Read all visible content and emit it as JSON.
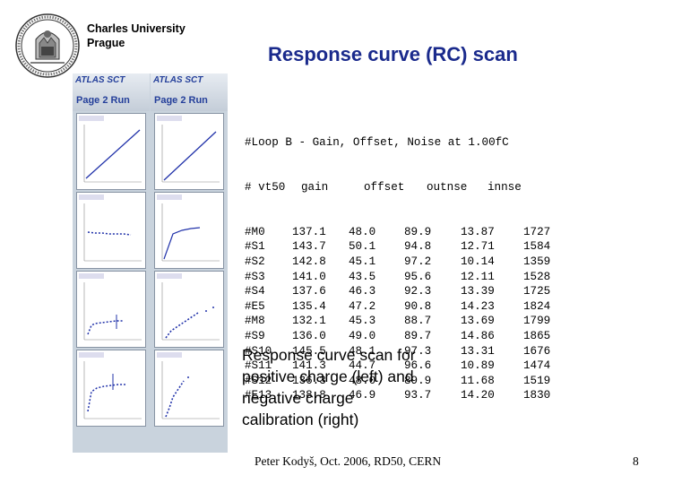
{
  "header": {
    "university_line1": "Charles University",
    "university_line2": "Prague"
  },
  "slide": {
    "title": "Response curve (RC) scan",
    "caption_lines": [
      "Response curve scan for",
      "positive charge (left) and",
      "negative charge",
      "calibration (right)"
    ],
    "footer": "Peter Kodyš, Oct. 2006, RD50, CERN",
    "page_number": "8"
  },
  "screenshots": {
    "title": "ATLAS SCT",
    "page_label": "Page 2  Run"
  },
  "results": {
    "heading": "#Loop B - Gain, Offset, Noise at 1.00fC",
    "columns": [
      "# vt50",
      "gain",
      "offset",
      "outnse",
      "innse",
      ""
    ],
    "rows": [
      [
        "#M0",
        "137.1",
        "48.0",
        "89.9",
        "13.87",
        "1727"
      ],
      [
        "#S1",
        "143.7",
        "50.1",
        "94.8",
        "12.71",
        "1584"
      ],
      [
        "#S2",
        "142.8",
        "45.1",
        "97.2",
        "10.14",
        "1359"
      ],
      [
        "#S3",
        "141.0",
        "43.5",
        "95.6",
        "12.11",
        "1528"
      ],
      [
        "#S4",
        "137.6",
        "46.3",
        "92.3",
        "13.39",
        "1725"
      ],
      [
        "#E5",
        "135.4",
        "47.2",
        "90.8",
        "14.23",
        "1824"
      ],
      [
        "#M8",
        "132.1",
        "45.3",
        "88.7",
        "13.69",
        "1799"
      ],
      [
        "#S9",
        "136.0",
        "49.0",
        "89.7",
        "14.86",
        "1865"
      ],
      [
        "#S10",
        "145.5",
        "48.1",
        "97.3",
        "13.31",
        "1676"
      ],
      [
        "#S11",
        "141.3",
        "44.7",
        "96.6",
        "10.89",
        "1474"
      ],
      [
        "#S12",
        "136.3",
        "48.0",
        "89.9",
        "11.68",
        "1519"
      ],
      [
        "#E13",
        "138.8",
        "46.9",
        "93.7",
        "14.20",
        "1830"
      ]
    ]
  }
}
